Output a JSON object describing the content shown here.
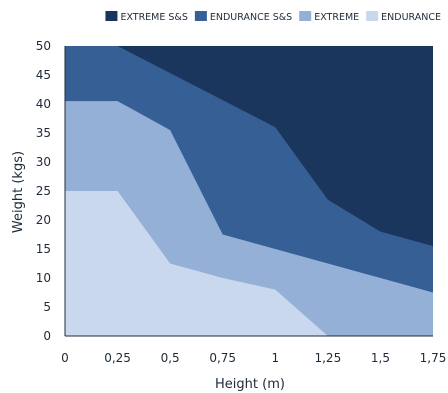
{
  "chart_data": {
    "type": "area",
    "title": "",
    "xlabel": "Height (m)",
    "ylabel": "Weight  (kgs)",
    "xlim": [
      0,
      1.75
    ],
    "ylim": [
      0,
      50
    ],
    "x_ticks": [
      "0",
      "0,25",
      "0,5",
      "0,75",
      "1",
      "1,25",
      "1,5",
      "1,75"
    ],
    "y_ticks": [
      "0",
      "5",
      "10",
      "15",
      "20",
      "25",
      "30",
      "35",
      "40",
      "45",
      "50"
    ],
    "grid": false,
    "legend_position": "top-right",
    "legend": [
      {
        "name": "EXTREME S&S",
        "color": "#1b365d"
      },
      {
        "name": "ENDURANCE S&S",
        "color": "#355f95"
      },
      {
        "name": "EXTREME",
        "color": "#94b0d6"
      },
      {
        "name": "ENDURANCE",
        "color": "#c9d8ef"
      }
    ],
    "series": [
      {
        "name": "EXTREME S&S",
        "color": "#1b365d",
        "points": [
          [
            0,
            50
          ],
          [
            1.75,
            50
          ]
        ]
      },
      {
        "name": "ENDURANCE S&S",
        "color": "#355f95",
        "points": [
          [
            0,
            50
          ],
          [
            0.25,
            50
          ],
          [
            1,
            36
          ],
          [
            1.25,
            23.5
          ],
          [
            1.5,
            18
          ],
          [
            1.75,
            15.5
          ]
        ]
      },
      {
        "name": "EXTREME",
        "color": "#94b0d6",
        "points": [
          [
            0,
            40.5
          ],
          [
            0.25,
            40.5
          ],
          [
            0.5,
            35.5
          ],
          [
            0.75,
            17.5
          ],
          [
            1,
            15
          ],
          [
            1.25,
            12.5
          ],
          [
            1.5,
            10
          ],
          [
            1.75,
            7.5
          ]
        ]
      },
      {
        "name": "ENDURANCE",
        "color": "#c9d8ef",
        "points": [
          [
            0,
            25
          ],
          [
            0.25,
            25
          ],
          [
            0.5,
            12.5
          ],
          [
            0.75,
            10
          ],
          [
            1,
            8
          ],
          [
            1.25,
            0
          ]
        ]
      }
    ]
  }
}
